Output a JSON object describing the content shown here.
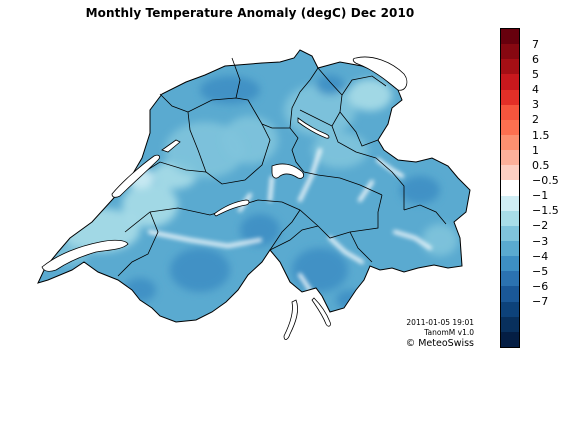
{
  "title": "Monthly Temperature Anomaly (degC) Dec 2010",
  "credits": {
    "timestamp": "2011-01-05 19:01",
    "product": "TanomM v1.0",
    "copyright": "© MeteoSwiss"
  },
  "legend": {
    "colors": [
      "#67000d",
      "#860811",
      "#a50f15",
      "#c9181d",
      "#e32f27",
      "#f6553d",
      "#fc7050",
      "#fc9070",
      "#fcb09a",
      "#fdd0c3",
      "#ffffff",
      "#d0eef5",
      "#a8dde8",
      "#7fc4dc",
      "#5aaad0",
      "#3d8fc4",
      "#2b72b0",
      "#1a5898",
      "#0d427a",
      "#08305d",
      "#041e44"
    ],
    "labels": [
      "7",
      "6",
      "5",
      "4",
      "3",
      "2",
      "1.5",
      "1",
      "0.5",
      "−0.5",
      "−1",
      "−1.5",
      "−2",
      "−3",
      "−4",
      "−5",
      "−6",
      "−7"
    ]
  },
  "map_colors": {
    "dominant": "#5aaad0",
    "cold": "#3d8fc4",
    "mild": "#7fc4dc",
    "warm": "#a8dde8",
    "warmest": "#d0eef5",
    "snow": "#ffffff",
    "border": "#000000",
    "lake": "#ffffff"
  }
}
